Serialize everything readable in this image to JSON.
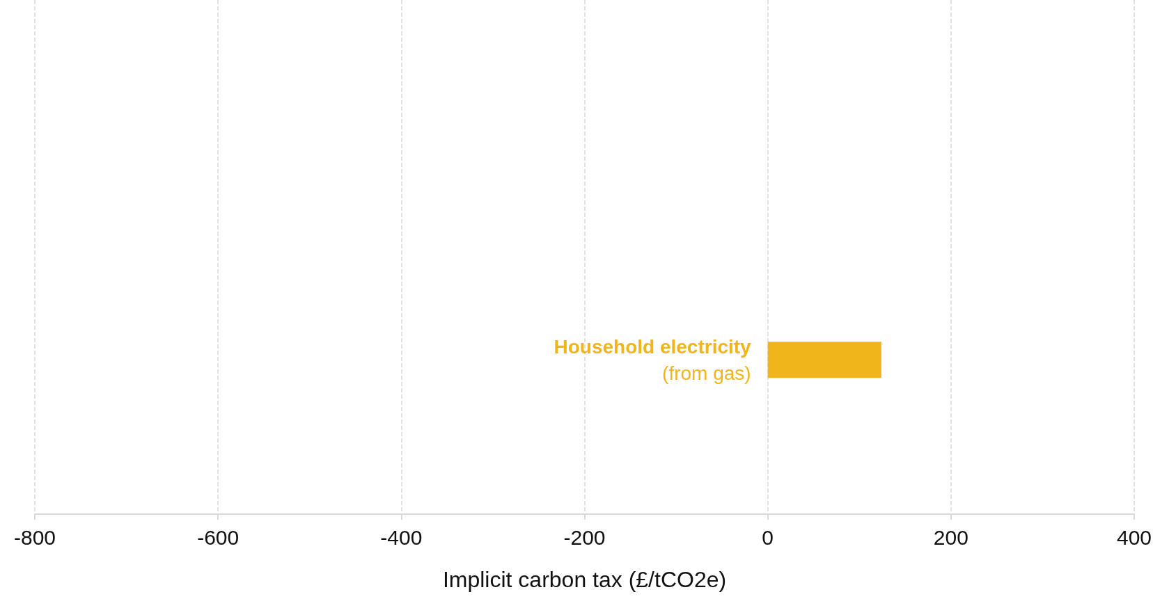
{
  "chart_data": {
    "type": "bar",
    "orientation": "horizontal",
    "xlabel": "Implicit carbon tax (£/tCO2e)",
    "categories": [
      null,
      null,
      null,
      "Household electricity\n(from gas)",
      null
    ],
    "values": [
      null,
      null,
      null,
      124,
      null
    ],
    "color": "#f0b51b",
    "xlim": [
      -800,
      400
    ],
    "xticks": [
      -800,
      -600,
      -400,
      -200,
      0,
      200,
      400
    ],
    "grid": "x"
  }
}
